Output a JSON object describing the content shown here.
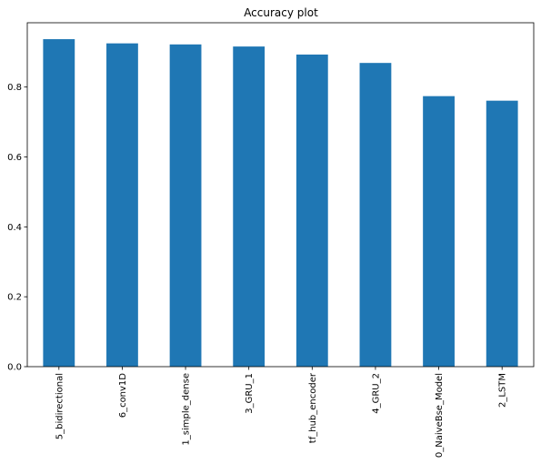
{
  "chart_data": {
    "type": "bar",
    "title": "Accuracy plot",
    "xlabel": "",
    "ylabel": "",
    "categories": [
      "5_bidirectional",
      "6_conv1D",
      "1_simple_dense",
      "3_GRU_1",
      "tf_hub_encoder",
      "4_GRU_2",
      "0_NaiveBse_Model",
      "2_LSTM"
    ],
    "values": [
      0.937,
      0.925,
      0.922,
      0.916,
      0.893,
      0.869,
      0.774,
      0.761
    ],
    "ylim": [
      0,
      0.984
    ],
    "yticks": [
      0.0,
      0.2,
      0.4,
      0.6,
      0.8
    ],
    "ytick_labels": [
      "0.0",
      "0.2",
      "0.4",
      "0.6",
      "0.8"
    ],
    "grid": false,
    "legend": "none",
    "bar_color": "#1f77b4"
  }
}
